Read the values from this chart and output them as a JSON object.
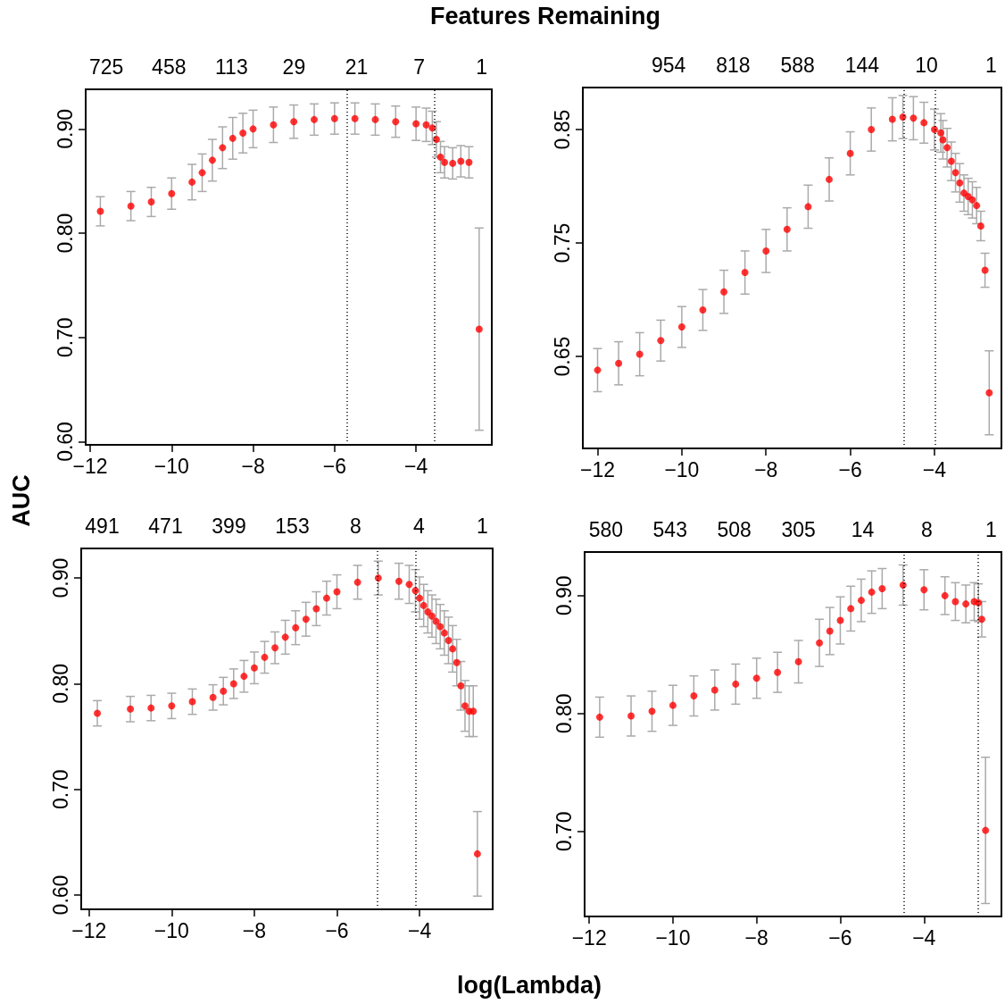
{
  "chart_data": [
    {
      "type": "scatter",
      "x2label": "Features Remaining",
      "ylabel": "AUC",
      "marker": "circle",
      "xlim": [
        -12.11,
        -2.14
      ],
      "ylim": [
        0.597,
        0.938
      ],
      "xticks": [
        {
          "value": -12,
          "label": "−12"
        },
        {
          "value": -10,
          "label": "−10"
        },
        {
          "value": -8,
          "label": "−8"
        },
        {
          "value": -6,
          "label": "−6"
        },
        {
          "value": -4,
          "label": "−4"
        }
      ],
      "yticks": [
        {
          "value": 0.6,
          "label": "0.60"
        },
        {
          "value": 0.7,
          "label": "0.70"
        },
        {
          "value": 0.8,
          "label": "0.80"
        },
        {
          "value": 0.9,
          "label": "0.90"
        }
      ],
      "annotations": [
        "725",
        "458",
        "113",
        "29",
        "21",
        "7",
        "1"
      ],
      "ref_lines": [
        {
          "axis": "x",
          "value": -5.69,
          "line_style": "dotted"
        },
        {
          "axis": "x",
          "value": -3.55,
          "line_style": "dotted"
        }
      ],
      "series": [
        {
          "color": "#ff0000",
          "x": [
            -11.75,
            -11.0,
            -10.5,
            -10.0,
            -9.5,
            -9.25,
            -9.0,
            -8.75,
            -8.5,
            -8.25,
            -8.0,
            -7.5,
            -7.0,
            -6.5,
            -6.0,
            -5.5,
            -5.0,
            -4.5,
            -4.0,
            -3.75,
            -3.6,
            -3.5,
            -3.4,
            -3.3,
            -3.1,
            -2.9,
            -2.7,
            -2.45
          ],
          "values": [
            0.821,
            0.826,
            0.83,
            0.838,
            0.849,
            0.858,
            0.87,
            0.882,
            0.891,
            0.896,
            0.9,
            0.904,
            0.907,
            0.909,
            0.91,
            0.91,
            0.909,
            0.907,
            0.905,
            0.904,
            0.901,
            0.89,
            0.873,
            0.868,
            0.867,
            0.869,
            0.868,
            0.708
          ],
          "errors": [
            0.014,
            0.014,
            0.014,
            0.015,
            0.017,
            0.018,
            0.02,
            0.02,
            0.02,
            0.019,
            0.018,
            0.017,
            0.016,
            0.015,
            0.015,
            0.015,
            0.015,
            0.015,
            0.016,
            0.016,
            0.016,
            0.017,
            0.015,
            0.015,
            0.015,
            0.015,
            0.015,
            0.097
          ]
        }
      ]
    },
    {
      "type": "scatter",
      "marker": "circle",
      "xlim": [
        -12.35,
        -2.41
      ],
      "ylim": [
        0.569,
        0.887
      ],
      "xticks": [
        {
          "value": -12,
          "label": "−12"
        },
        {
          "value": -10,
          "label": "−10"
        },
        {
          "value": -8,
          "label": "−8"
        },
        {
          "value": -6,
          "label": "−6"
        },
        {
          "value": -4,
          "label": "−4"
        }
      ],
      "yticks": [
        {
          "value": 0.65,
          "label": "0.65"
        },
        {
          "value": 0.75,
          "label": "0.75"
        },
        {
          "value": 0.85,
          "label": "0.85"
        }
      ],
      "annotations": [
        "954",
        "818",
        "588",
        "144",
        "10",
        "1"
      ],
      "ref_lines": [
        {
          "axis": "x",
          "value": -4.73,
          "line_style": "dotted"
        },
        {
          "axis": "x",
          "value": -3.98,
          "line_style": "dotted"
        }
      ],
      "series": [
        {
          "color": "#ff0000",
          "x": [
            -12.0,
            -11.5,
            -11.0,
            -10.5,
            -10.0,
            -9.5,
            -9.0,
            -8.5,
            -8.0,
            -7.5,
            -7.0,
            -6.5,
            -6.0,
            -5.5,
            -5.0,
            -4.75,
            -4.5,
            -4.25,
            -4.0,
            -3.85,
            -3.8,
            -3.7,
            -3.6,
            -3.5,
            -3.4,
            -3.3,
            -3.2,
            -3.1,
            -3.0,
            -2.9,
            -2.8,
            -2.7
          ],
          "values": [
            0.638,
            0.644,
            0.652,
            0.664,
            0.676,
            0.691,
            0.707,
            0.724,
            0.743,
            0.762,
            0.782,
            0.806,
            0.829,
            0.85,
            0.859,
            0.861,
            0.86,
            0.856,
            0.85,
            0.847,
            0.841,
            0.834,
            0.822,
            0.812,
            0.803,
            0.794,
            0.791,
            0.788,
            0.783,
            0.765,
            0.726,
            0.618
          ],
          "errors": [
            0.019,
            0.019,
            0.019,
            0.018,
            0.018,
            0.018,
            0.019,
            0.019,
            0.019,
            0.019,
            0.019,
            0.019,
            0.019,
            0.019,
            0.019,
            0.019,
            0.019,
            0.018,
            0.018,
            0.017,
            0.017,
            0.017,
            0.017,
            0.017,
            0.017,
            0.016,
            0.016,
            0.016,
            0.016,
            0.013,
            0.015,
            0.037
          ]
        }
      ]
    },
    {
      "type": "scatter",
      "xlabel": "log(Lambda)",
      "marker": "circle",
      "xlim": [
        -12.19,
        -2.23
      ],
      "ylim": [
        0.5865,
        0.928
      ],
      "xticks": [
        {
          "value": -12,
          "label": "−12"
        },
        {
          "value": -10,
          "label": "−10"
        },
        {
          "value": -8,
          "label": "−8"
        },
        {
          "value": -6,
          "label": "−6"
        },
        {
          "value": -4,
          "label": "−4"
        }
      ],
      "yticks": [
        {
          "value": 0.6,
          "label": "0.60"
        },
        {
          "value": 0.7,
          "label": "0.70"
        },
        {
          "value": 0.8,
          "label": "0.80"
        },
        {
          "value": 0.9,
          "label": "0.90"
        }
      ],
      "annotations": [
        "491",
        "471",
        "399",
        "153",
        "8",
        "4",
        "1"
      ],
      "ref_lines": [
        {
          "axis": "x",
          "value": -5.03,
          "line_style": "dotted"
        },
        {
          "axis": "x",
          "value": -4.09,
          "line_style": "dotted"
        }
      ],
      "series": [
        {
          "color": "#ff0000",
          "x": [
            -11.8,
            -11.0,
            -10.5,
            -10.0,
            -9.5,
            -9.0,
            -8.75,
            -8.5,
            -8.25,
            -8.0,
            -7.75,
            -7.5,
            -7.25,
            -7.0,
            -6.75,
            -6.5,
            -6.25,
            -6.0,
            -5.5,
            -5.0,
            -4.5,
            -4.25,
            -4.1,
            -4.0,
            -3.9,
            -3.8,
            -3.7,
            -3.6,
            -3.5,
            -3.4,
            -3.3,
            -3.2,
            -3.1,
            -3.0,
            -2.9,
            -2.8,
            -2.7,
            -2.6
          ],
          "values": [
            0.772,
            0.776,
            0.777,
            0.779,
            0.783,
            0.787,
            0.793,
            0.8,
            0.807,
            0.815,
            0.825,
            0.834,
            0.844,
            0.853,
            0.861,
            0.871,
            0.881,
            0.887,
            0.896,
            0.9,
            0.897,
            0.894,
            0.888,
            0.881,
            0.874,
            0.868,
            0.864,
            0.859,
            0.854,
            0.848,
            0.841,
            0.833,
            0.82,
            0.798,
            0.779,
            0.774,
            0.774,
            0.639
          ],
          "errors": [
            0.012,
            0.012,
            0.012,
            0.012,
            0.012,
            0.012,
            0.013,
            0.014,
            0.015,
            0.015,
            0.015,
            0.015,
            0.016,
            0.016,
            0.016,
            0.016,
            0.016,
            0.016,
            0.016,
            0.016,
            0.017,
            0.018,
            0.02,
            0.02,
            0.02,
            0.02,
            0.02,
            0.021,
            0.021,
            0.021,
            0.022,
            0.022,
            0.022,
            0.023,
            0.024,
            0.024,
            0.024,
            0.04
          ]
        }
      ]
    },
    {
      "type": "scatter",
      "marker": "circle",
      "xlim": [
        -12.11,
        -2.15
      ],
      "ylim": [
        0.628,
        0.937
      ],
      "xticks": [
        {
          "value": -12,
          "label": "−12"
        },
        {
          "value": -10,
          "label": "−10"
        },
        {
          "value": -8,
          "label": "−8"
        },
        {
          "value": -6,
          "label": "−6"
        },
        {
          "value": -4,
          "label": "−4"
        }
      ],
      "yticks": [
        {
          "value": 0.7,
          "label": "0.70"
        },
        {
          "value": 0.8,
          "label": "0.80"
        },
        {
          "value": 0.9,
          "label": "0.90"
        }
      ],
      "annotations": [
        "580",
        "543",
        "508",
        "305",
        "14",
        "8",
        "1"
      ],
      "ref_lines": [
        {
          "axis": "x",
          "value": -4.48,
          "line_style": "dotted"
        },
        {
          "axis": "x",
          "value": -2.72,
          "line_style": "dotted"
        }
      ],
      "series": [
        {
          "color": "#ff0000",
          "x": [
            -11.75,
            -11.0,
            -10.5,
            -10.0,
            -9.5,
            -9.0,
            -8.5,
            -8.0,
            -7.5,
            -7.0,
            -6.5,
            -6.25,
            -6.0,
            -5.75,
            -5.5,
            -5.25,
            -5.0,
            -4.5,
            -4.0,
            -3.5,
            -3.25,
            -3.0,
            -2.8,
            -2.7,
            -2.62,
            -2.53
          ],
          "values": [
            0.797,
            0.798,
            0.802,
            0.807,
            0.815,
            0.82,
            0.825,
            0.83,
            0.835,
            0.844,
            0.86,
            0.87,
            0.879,
            0.889,
            0.896,
            0.903,
            0.906,
            0.909,
            0.905,
            0.9,
            0.895,
            0.893,
            0.895,
            0.894,
            0.88,
            0.701
          ],
          "errors": [
            0.017,
            0.017,
            0.017,
            0.017,
            0.017,
            0.017,
            0.017,
            0.017,
            0.017,
            0.018,
            0.02,
            0.02,
            0.02,
            0.019,
            0.018,
            0.018,
            0.017,
            0.017,
            0.017,
            0.016,
            0.016,
            0.016,
            0.016,
            0.016,
            0.015,
            0.062
          ]
        }
      ]
    }
  ]
}
